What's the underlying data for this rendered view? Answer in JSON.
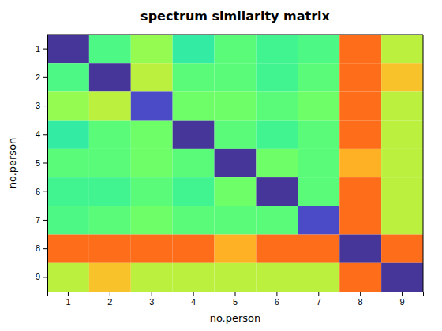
{
  "chart_data": {
    "type": "heatmap",
    "title": "spectrum similarity matrix",
    "x_label": "no.person",
    "y_label": "no.person",
    "categories": [
      1,
      2,
      3,
      4,
      5,
      6,
      7,
      8,
      9
    ],
    "matrix": [
      [
        0.05,
        0.4,
        0.5,
        0.35,
        0.42,
        0.38,
        0.4,
        0.78,
        0.55
      ],
      [
        0.4,
        0.05,
        0.55,
        0.42,
        0.42,
        0.38,
        0.42,
        0.78,
        0.65
      ],
      [
        0.5,
        0.55,
        0.08,
        0.45,
        0.45,
        0.42,
        0.45,
        0.78,
        0.55
      ],
      [
        0.35,
        0.42,
        0.45,
        0.05,
        0.42,
        0.38,
        0.42,
        0.78,
        0.55
      ],
      [
        0.42,
        0.42,
        0.45,
        0.42,
        0.05,
        0.45,
        0.42,
        0.68,
        0.55
      ],
      [
        0.38,
        0.38,
        0.42,
        0.38,
        0.45,
        0.05,
        0.42,
        0.78,
        0.55
      ],
      [
        0.4,
        0.42,
        0.45,
        0.42,
        0.42,
        0.42,
        0.08,
        0.78,
        0.55
      ],
      [
        0.78,
        0.78,
        0.78,
        0.78,
        0.68,
        0.78,
        0.78,
        0.05,
        0.78
      ],
      [
        0.55,
        0.65,
        0.55,
        0.55,
        0.55,
        0.55,
        0.55,
        0.78,
        0.05
      ]
    ],
    "color_range": [
      0.0,
      1.0
    ]
  }
}
